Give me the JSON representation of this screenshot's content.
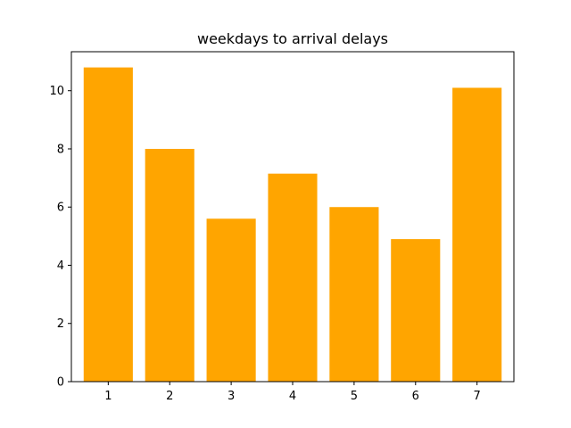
{
  "chart_data": {
    "type": "bar",
    "title": "weekdays to arrival delays",
    "xlabel": "",
    "ylabel": "",
    "categories": [
      "1",
      "2",
      "3",
      "4",
      "5",
      "6",
      "7"
    ],
    "values": [
      10.8,
      8.0,
      5.6,
      7.15,
      6.0,
      4.9,
      10.1
    ],
    "ylim": [
      0,
      11.34
    ],
    "yticks": [
      0,
      2,
      4,
      6,
      8,
      10
    ],
    "bar_color": "#ffa500",
    "grid": false
  }
}
